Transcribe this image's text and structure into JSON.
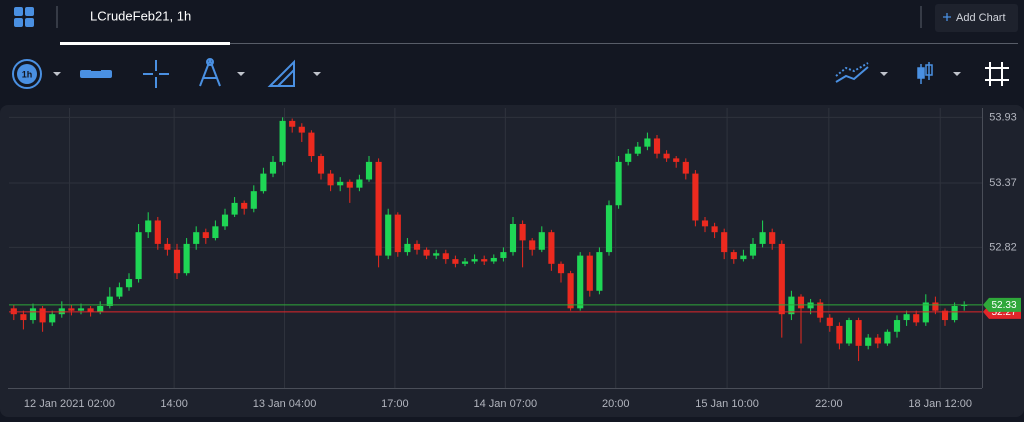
{
  "header": {
    "tab": "LCrudeFeb21, 1h",
    "add_chart": "Add Chart"
  },
  "chart_data": {
    "type": "candlestick",
    "open": [
      52.3,
      52.25,
      52.2,
      52.3,
      52.18,
      52.25,
      52.3,
      52.28,
      52.3,
      52.27,
      52.32,
      52.4,
      52.48,
      52.55,
      52.95,
      53.05,
      52.85,
      52.8,
      52.6,
      52.85,
      52.95,
      52.9,
      53.0,
      53.1,
      53.2,
      53.15,
      53.3,
      53.45,
      53.55,
      53.9,
      53.85,
      53.8,
      53.6,
      53.45,
      53.35,
      53.38,
      53.33,
      53.4,
      53.55,
      52.75,
      53.1,
      52.78,
      52.85,
      52.8,
      52.75,
      52.77,
      52.72,
      52.68,
      52.7,
      52.72,
      52.7,
      52.73,
      52.78,
      53.02,
      52.88,
      52.8,
      52.95,
      52.68,
      52.6,
      52.3,
      52.75,
      52.45,
      52.78,
      53.18,
      53.55,
      53.62,
      53.68,
      53.75,
      53.62,
      53.58,
      53.55,
      53.45,
      53.05,
      53.0,
      52.95,
      52.78,
      52.72,
      52.75,
      52.85,
      52.95,
      52.85,
      52.25,
      52.4,
      52.3,
      52.35,
      52.22,
      52.15,
      52.0,
      52.2,
      51.98,
      52.05,
      52.0,
      52.1,
      52.2,
      52.25,
      52.18,
      52.35,
      52.28,
      52.2,
      52.32
    ],
    "high": [
      52.33,
      52.28,
      52.34,
      52.32,
      52.28,
      52.36,
      52.33,
      52.34,
      52.32,
      52.36,
      52.48,
      52.52,
      52.6,
      53.02,
      53.12,
      53.08,
      52.9,
      52.85,
      52.9,
      53.0,
      52.98,
      53.05,
      53.15,
      53.25,
      53.22,
      53.35,
      53.5,
      53.6,
      53.93,
      53.92,
      53.88,
      53.82,
      53.62,
      53.48,
      53.42,
      53.4,
      53.44,
      53.6,
      53.58,
      53.15,
      53.12,
      52.9,
      52.88,
      52.82,
      52.8,
      52.8,
      52.75,
      52.73,
      52.76,
      52.75,
      52.76,
      52.82,
      53.08,
      53.05,
      52.9,
      53.0,
      52.97,
      52.7,
      52.62,
      52.78,
      52.78,
      52.82,
      53.22,
      53.6,
      53.66,
      53.72,
      53.8,
      53.78,
      53.65,
      53.6,
      53.58,
      53.48,
      53.08,
      53.03,
      52.98,
      52.8,
      52.8,
      52.9,
      53.05,
      52.98,
      52.88,
      52.45,
      52.42,
      52.38,
      52.38,
      52.25,
      52.18,
      52.22,
      52.22,
      52.08,
      52.08,
      52.12,
      52.24,
      52.28,
      52.28,
      52.42,
      52.4,
      52.3,
      52.35,
      52.36
    ],
    "low": [
      52.2,
      52.12,
      52.17,
      52.1,
      52.15,
      52.22,
      52.24,
      52.25,
      52.23,
      52.25,
      52.3,
      52.38,
      52.45,
      52.52,
      52.9,
      52.8,
      52.75,
      52.55,
      52.58,
      52.8,
      52.85,
      52.88,
      52.97,
      53.08,
      53.1,
      53.12,
      53.28,
      53.42,
      53.52,
      53.8,
      53.72,
      53.55,
      53.4,
      53.3,
      53.3,
      53.2,
      53.3,
      53.38,
      52.65,
      52.72,
      52.74,
      52.75,
      52.76,
      52.72,
      52.72,
      52.68,
      52.65,
      52.66,
      52.68,
      52.67,
      52.68,
      52.7,
      52.75,
      52.65,
      52.75,
      52.78,
      52.62,
      52.52,
      52.28,
      52.28,
      52.4,
      52.42,
      52.75,
      53.15,
      53.52,
      53.6,
      53.65,
      53.58,
      53.55,
      53.5,
      53.4,
      53.0,
      52.95,
      52.9,
      52.72,
      52.68,
      52.7,
      52.72,
      52.82,
      52.8,
      52.05,
      52.2,
      52.0,
      52.25,
      52.18,
      52.1,
      51.95,
      51.98,
      51.85,
      51.95,
      51.96,
      51.98,
      52.05,
      52.15,
      52.15,
      52.15,
      52.25,
      52.15,
      52.18,
      52.28
    ],
    "close": [
      52.25,
      52.2,
      52.3,
      52.18,
      52.25,
      52.3,
      52.28,
      52.3,
      52.27,
      52.32,
      52.4,
      52.48,
      52.55,
      52.95,
      53.05,
      52.85,
      52.8,
      52.6,
      52.85,
      52.95,
      52.9,
      53.0,
      53.1,
      53.2,
      53.15,
      53.3,
      53.45,
      53.55,
      53.9,
      53.85,
      53.8,
      53.6,
      53.45,
      53.35,
      53.38,
      53.33,
      53.4,
      53.55,
      52.75,
      53.1,
      52.78,
      52.85,
      52.8,
      52.75,
      52.77,
      52.72,
      52.68,
      52.7,
      52.72,
      52.7,
      52.73,
      52.78,
      53.02,
      52.88,
      52.8,
      52.95,
      52.68,
      52.6,
      52.3,
      52.75,
      52.45,
      52.78,
      53.18,
      53.55,
      53.62,
      53.68,
      53.75,
      53.62,
      53.58,
      53.55,
      53.45,
      53.05,
      53.0,
      52.95,
      52.78,
      52.72,
      52.75,
      52.85,
      52.95,
      52.85,
      52.25,
      52.4,
      52.3,
      52.35,
      52.22,
      52.15,
      52.0,
      52.2,
      51.98,
      52.05,
      52.0,
      52.1,
      52.2,
      52.25,
      52.18,
      52.35,
      52.28,
      52.2,
      52.32,
      52.33
    ],
    "up_color": "#1fd655",
    "down_color": "#ec2a1f",
    "xlim": [
      -0.5,
      99.5
    ],
    "xticks": [
      {
        "value": 5.8,
        "label": "12 Jan 2021 02:00"
      },
      {
        "value": 16.7,
        "label": "14:00"
      },
      {
        "value": 28.2,
        "label": "13 Jan 04:00"
      },
      {
        "value": 39.7,
        "label": "17:00"
      },
      {
        "value": 51.2,
        "label": "14 Jan 07:00"
      },
      {
        "value": 62.7,
        "label": "20:00"
      },
      {
        "value": 74.3,
        "label": "15 Jan 10:00"
      },
      {
        "value": 84.9,
        "label": "22:00"
      },
      {
        "value": 96.5,
        "label": "18 Jan 12:00"
      }
    ],
    "ylim": [
      51.62,
      54.01
    ],
    "yticks": [
      53.93,
      53.37,
      52.82
    ],
    "grid": true,
    "price_lines": [
      {
        "value": 52.27,
        "label": "52.27",
        "color": "#e0262a"
      },
      {
        "value": 52.33,
        "label": "52.33",
        "color": "#2fa83a"
      }
    ]
  }
}
